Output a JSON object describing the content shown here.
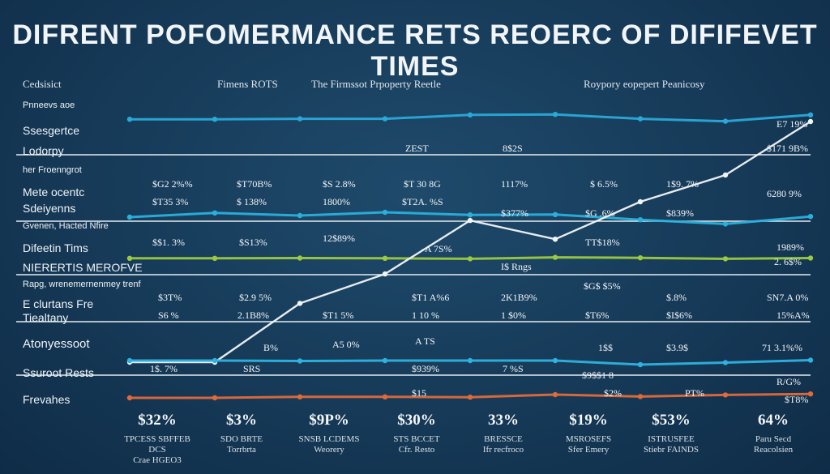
{
  "title": "DIFRENT POFOMERMANCE  RETS  REOERC OF DIFIFEVET TIMES",
  "header": {
    "col0": "Cedsisict",
    "col1": "Fimens ROTS",
    "col2": "The Firmssot Prpoperty Reetle",
    "col3": "Roypory eopepert Peanicosy"
  },
  "row_labels": [
    {
      "text": "Pnneevs aoe",
      "size": "small"
    },
    {
      "text": "Ssesgertce",
      "size": "mid"
    },
    {
      "text": "Lodorpy",
      "size": "mid"
    },
    {
      "text": "her Froenngrot",
      "size": "small"
    },
    {
      "text": "Mete ocentc",
      "size": "mid"
    },
    {
      "text": "Sdeiyenns",
      "size": "mid"
    },
    {
      "text": "Gvenen, Hacted Nfire",
      "size": "small"
    },
    {
      "text": "Difeetin Tims",
      "size": "mid"
    },
    {
      "text": "NIERERTIS MEROFVE",
      "size": "mid"
    },
    {
      "text": "Rapg, wrenemernenmey trenf",
      "size": "small"
    },
    {
      "text": "E clurtans Fre",
      "size": "mid"
    },
    {
      "text": "Tiealtany",
      "size": "mid"
    },
    {
      "text": "Atonyessoot",
      "size": "big"
    },
    {
      "text": "Ssuroot Rests",
      "size": "mid"
    },
    {
      "text": "Frevahes",
      "size": "mid"
    }
  ],
  "cells": {
    "r1": [
      "ZEST",
      "8$2S",
      "E7 19%"
    ],
    "r2": [
      "$171 9B%"
    ],
    "r3": [
      "$G2 2%%",
      "$T70B%",
      "$S 2.8%",
      "$T 30 8G",
      "1117%",
      "$ 6.5%",
      "1$9. 7%"
    ],
    "r4": [
      "$T35 3%",
      "$ 138%",
      "1800%",
      "$T2A. %S",
      "6280 9%"
    ],
    "r5": [
      "$377%",
      "$G .6%",
      "$839%"
    ],
    "r6": [
      "$$1. 3%",
      "$S13%",
      "12$89%",
      "-A 7S%",
      "TT$18%",
      "1989%"
    ],
    "r7": [
      "I$ Rngs",
      "2. 6$%"
    ],
    "r8": [
      "$G$ $5%"
    ],
    "r9": [
      "$3T%",
      "$2.9 5%",
      "$T1 A%6",
      "2K1B9%",
      "$.8%",
      "SN7.A 0%"
    ],
    "r10": [
      "S6 %",
      "2.1B8%",
      "$T1 5%",
      "1 10 %",
      "1 $0%",
      "$T6%",
      "$I$6%",
      "15%A%"
    ],
    "r11": [
      "B%",
      "A5 0%",
      "A TS",
      "1$$",
      "$3.9$",
      "71 3.1%%"
    ],
    "r12": [
      "1$. 7%",
      "SRS",
      "$939%",
      "7 %S"
    ],
    "r13": [
      "$9$$1 8",
      "$2%",
      "PT%",
      "$15",
      "R/G%",
      "$T8%"
    ]
  },
  "footer": [
    {
      "value": "$32%",
      "line1": "TPCESS SBFFEB DCS",
      "line2": "Crae HGEO3"
    },
    {
      "value": "$3%",
      "line1": "SDO BRTE",
      "line2": "Torrbrta"
    },
    {
      "value": "$9P%",
      "line1": "SNSB LCDEMS",
      "line2": "Weorery"
    },
    {
      "value": "$30%",
      "line1": "STS BCCET",
      "line2": "Cfr. Resto"
    },
    {
      "value": "33%",
      "line1": "BRESSCE",
      "line2": "Ifr recfroco"
    },
    {
      "value": "$19%",
      "line1": "MSROSEFS",
      "line2": "Sfer Emery"
    },
    {
      "value": "$53%",
      "line1": "ISTRUSFEE",
      "line2": "Stiebr FAINDS"
    },
    {
      "value": "64%",
      "line1": "Paru Secd",
      "line2": "Reacolsien"
    }
  ],
  "chart_data": {
    "type": "line",
    "title": "DIFRENT POFOMERMANCE  RETS  REOERC OF DIFIFEVET TIMES",
    "x": [
      0,
      1,
      2,
      3,
      4,
      5,
      6,
      7,
      8
    ],
    "xlabel": "",
    "ylabel": "",
    "ylim": [
      0,
      100
    ],
    "grid": true,
    "series": [
      {
        "name": "cyan-top",
        "color": "#2aa9d8",
        "values": [
          88,
          88,
          89,
          89,
          97,
          98,
          89,
          84,
          97
        ]
      },
      {
        "name": "cyan-mid",
        "color": "#2ab0dc",
        "values": [
          55,
          68,
          60,
          70,
          62,
          63,
          47,
          34,
          57
        ]
      },
      {
        "name": "green",
        "color": "#9bc93f",
        "values": [
          54,
          54,
          55,
          54,
          52,
          58,
          56,
          52,
          55
        ]
      },
      {
        "name": "white-rise",
        "color": "#f2f5f8",
        "values": [
          10,
          10,
          32,
          43,
          63,
          56,
          70,
          80,
          100
        ]
      },
      {
        "name": "cyan-low",
        "color": "#2fb2df",
        "values": [
          30,
          30,
          29,
          30,
          30,
          30,
          20,
          25,
          31
        ]
      },
      {
        "name": "orange",
        "color": "#e06a3a",
        "values": [
          10,
          10,
          13,
          13,
          12,
          20,
          14,
          19,
          22
        ]
      }
    ]
  },
  "colors": {
    "background": "#163a58",
    "rule": "#e6ecf1",
    "cyan": "#2aa9d8",
    "green": "#9bc93f",
    "orange": "#e06a3a",
    "white": "#f2f5f8"
  }
}
